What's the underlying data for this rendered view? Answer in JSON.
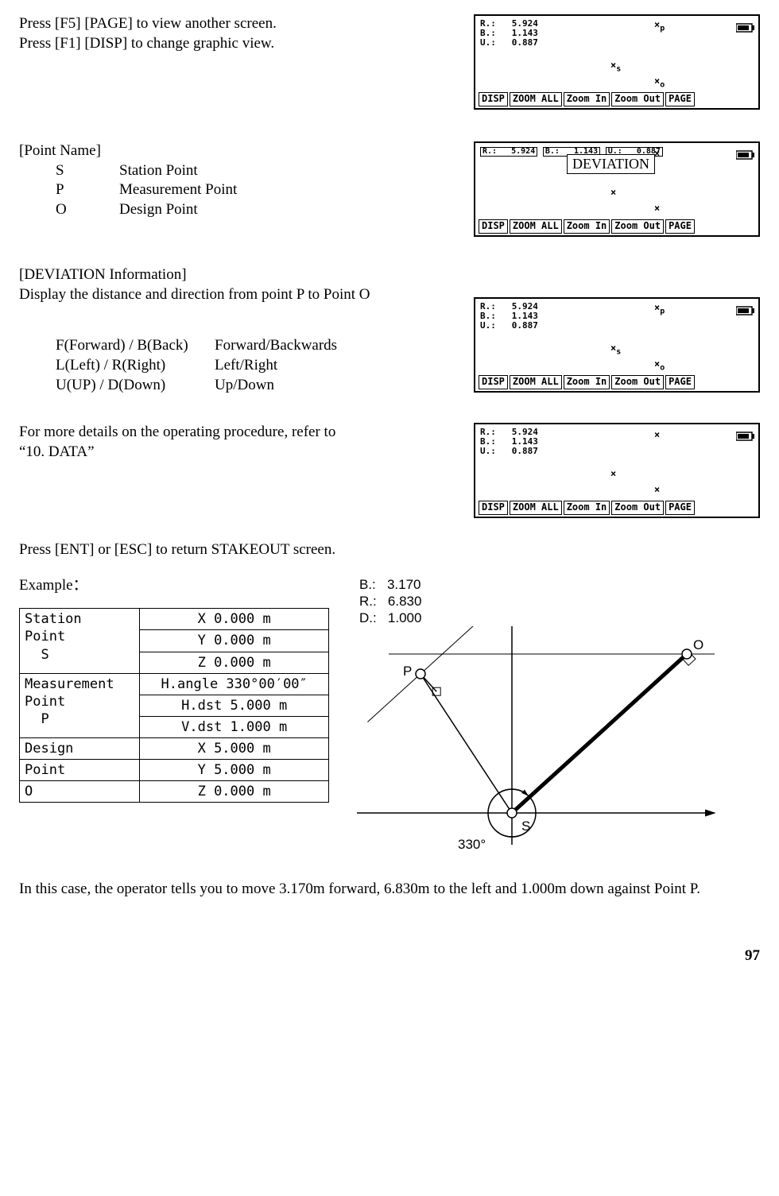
{
  "text": {
    "intro1": "Press [F5] [PAGE] to view another screen.",
    "intro2": "Press [F1] [DISP] to change graphic view.",
    "pn_head": "[Point Name]",
    "pn_s_k": "S",
    "pn_s_v": "Station Point",
    "pn_p_k": "P",
    "pn_p_v": "Measurement Point",
    "pn_o_k": "O",
    "pn_o_v": "Design Point",
    "dev_head": "[DEVIATION Information]",
    "dev_desc": "Display the distance and direction from point P to Point O",
    "fb_k": "F(Forward) / B(Back)",
    "fb_v": "Forward/Backwards",
    "lr_k": "L(Left) / R(Right)",
    "lr_v": "Left/Right",
    "ud_k": "U(UP) / D(Down)",
    "ud_v": "Up/Down",
    "more1": "For more details on the operating procedure, refer to “10. DATA”",
    "ret": "Press [ENT] or [ESC] to return STAKEOUT screen.",
    "example": "Example：",
    "closing": "In this case, the operator tells you to move 3.170m forward, 6.830m to the left and 1.000m down against Point P.",
    "pagenum": "97",
    "deviation_box": "DEVIATION"
  },
  "device": {
    "R": "5.924",
    "B": "1.143",
    "U": "0.887",
    "R_lbl": "R.:",
    "B_lbl": "B.:",
    "U_lbl": "U.:",
    "keys": [
      "DISP",
      "ZOOM ALL",
      "Zoom In",
      "Zoom Out",
      "PAGE"
    ],
    "pt_p": "p",
    "pt_s": "s",
    "pt_o": "o"
  },
  "example_table": {
    "station_lbl": "Station\nPoint\n  S",
    "meas_lbl": "Measurement\nPoint\n  P",
    "design_lbl1": "Design",
    "design_lbl2": " Point",
    "design_lbl3": "O",
    "rows": {
      "s_x": "X    0.000 m",
      "s_y": "Y    0.000 m",
      "s_z": "Z    0.000 m",
      "m_h": "H.angle  330°00′00″",
      "m_hd": "H.dst  5.000 m",
      "m_vd": "V.dst  1.000 m",
      "d_x": "X    5.000 m",
      "d_y": "Y    5.000 m",
      "d_z": "Z    0.000 m"
    }
  },
  "diagram": {
    "B_lbl": "B.:",
    "B_v": "3.170",
    "R_lbl": "R.:",
    "R_v": "6.830",
    "D_lbl": "D.:",
    "D_v": "1.000",
    "P": "P",
    "O": "O",
    "S": "S",
    "angle": "330°",
    "colors": {
      "stroke": "#000000",
      "bg": "#ffffff"
    },
    "linewidth": 1.5
  }
}
